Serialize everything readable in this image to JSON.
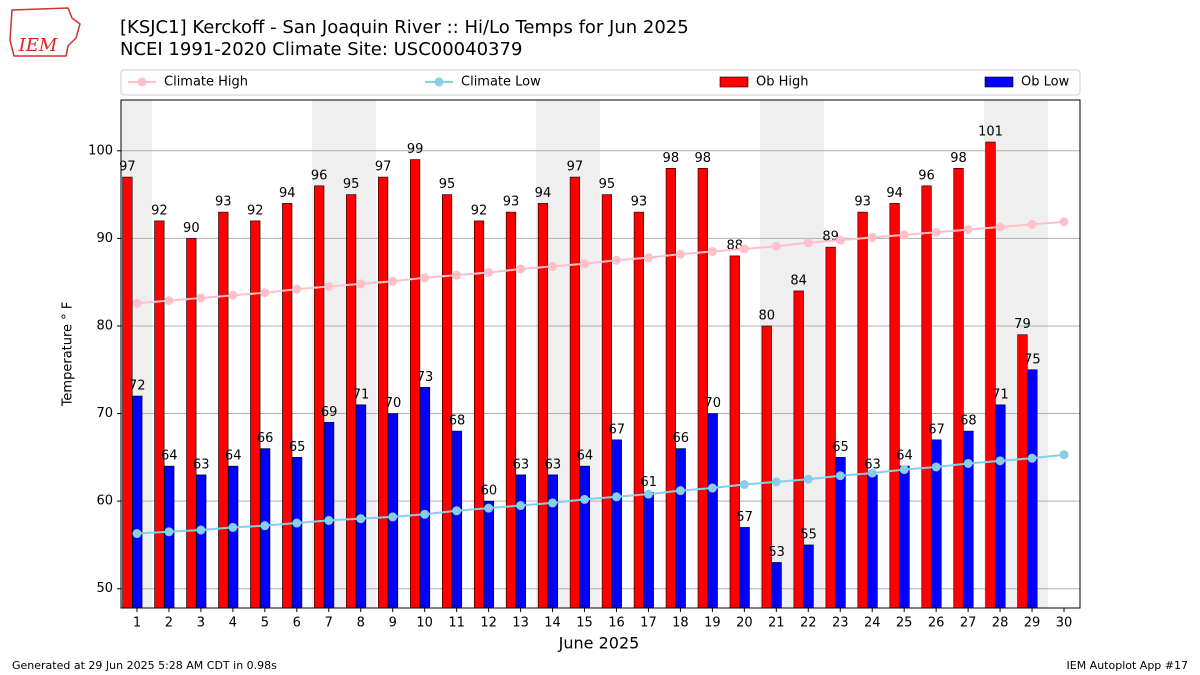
{
  "chart_data": {
    "type": "bar",
    "title": "[KSJC1] Kerckoff - San Joaquin River :: Hi/Lo Temps for Jun 2025",
    "subtitle": "NCEI 1991-2020 Climate Site: USC00040379",
    "logo_text": "IEM",
    "x_label": "June 2025",
    "y_label": "Temperature ° F",
    "footer_left": "Generated at 29 Jun 2025 5:28 AM CDT in 0.98s",
    "footer_right": "IEM Autoplot App #17",
    "x": [
      1,
      2,
      3,
      4,
      5,
      6,
      7,
      8,
      9,
      10,
      11,
      12,
      13,
      14,
      15,
      16,
      17,
      18,
      19,
      20,
      21,
      22,
      23,
      24,
      25,
      26,
      27,
      28,
      29,
      30
    ],
    "xlim": [
      0.5,
      30.5
    ],
    "xticks": [
      1,
      2,
      3,
      4,
      5,
      6,
      7,
      8,
      9,
      10,
      11,
      12,
      13,
      14,
      15,
      16,
      17,
      18,
      19,
      20,
      21,
      22,
      23,
      24,
      25,
      26,
      27,
      28,
      29,
      30
    ],
    "ylim": [
      47.8,
      105.8
    ],
    "yticks": [
      50,
      60,
      70,
      80,
      90,
      100
    ],
    "grid": true,
    "legend": "top",
    "series": [
      {
        "name": "Climate High",
        "type": "line",
        "color": "#ffc0cb",
        "values": [
          82.6,
          82.9,
          83.2,
          83.5,
          83.8,
          84.2,
          84.5,
          84.8,
          85.1,
          85.5,
          85.8,
          86.1,
          86.5,
          86.8,
          87.1,
          87.5,
          87.8,
          88.2,
          88.5,
          88.8,
          89.1,
          89.5,
          89.8,
          90.1,
          90.4,
          90.7,
          91.0,
          91.3,
          91.6,
          91.9
        ]
      },
      {
        "name": "Climate Low",
        "type": "line",
        "color": "#87ceeb",
        "values": [
          56.3,
          56.5,
          56.7,
          57.0,
          57.2,
          57.5,
          57.8,
          58.0,
          58.2,
          58.5,
          58.9,
          59.2,
          59.5,
          59.8,
          60.2,
          60.5,
          60.8,
          61.2,
          61.5,
          61.9,
          62.2,
          62.5,
          62.9,
          63.2,
          63.6,
          63.9,
          64.3,
          64.6,
          64.9,
          65.3
        ]
      },
      {
        "name": "Ob High",
        "type": "bar",
        "color": "#ff0000",
        "values": [
          97,
          92,
          90,
          93,
          92,
          94,
          96,
          95,
          97,
          99,
          95,
          92,
          93,
          94,
          97,
          95,
          93,
          98,
          98,
          88,
          80,
          84,
          89,
          93,
          94,
          96,
          98,
          101,
          79,
          null
        ]
      },
      {
        "name": "Ob Low",
        "type": "bar",
        "color": "#0000ff",
        "values": [
          72,
          64,
          63,
          64,
          66,
          65,
          69,
          71,
          70,
          73,
          68,
          60,
          63,
          63,
          64,
          67,
          61,
          66,
          70,
          57,
          53,
          55,
          65,
          63,
          64,
          67,
          68,
          71,
          75,
          null
        ]
      }
    ]
  }
}
